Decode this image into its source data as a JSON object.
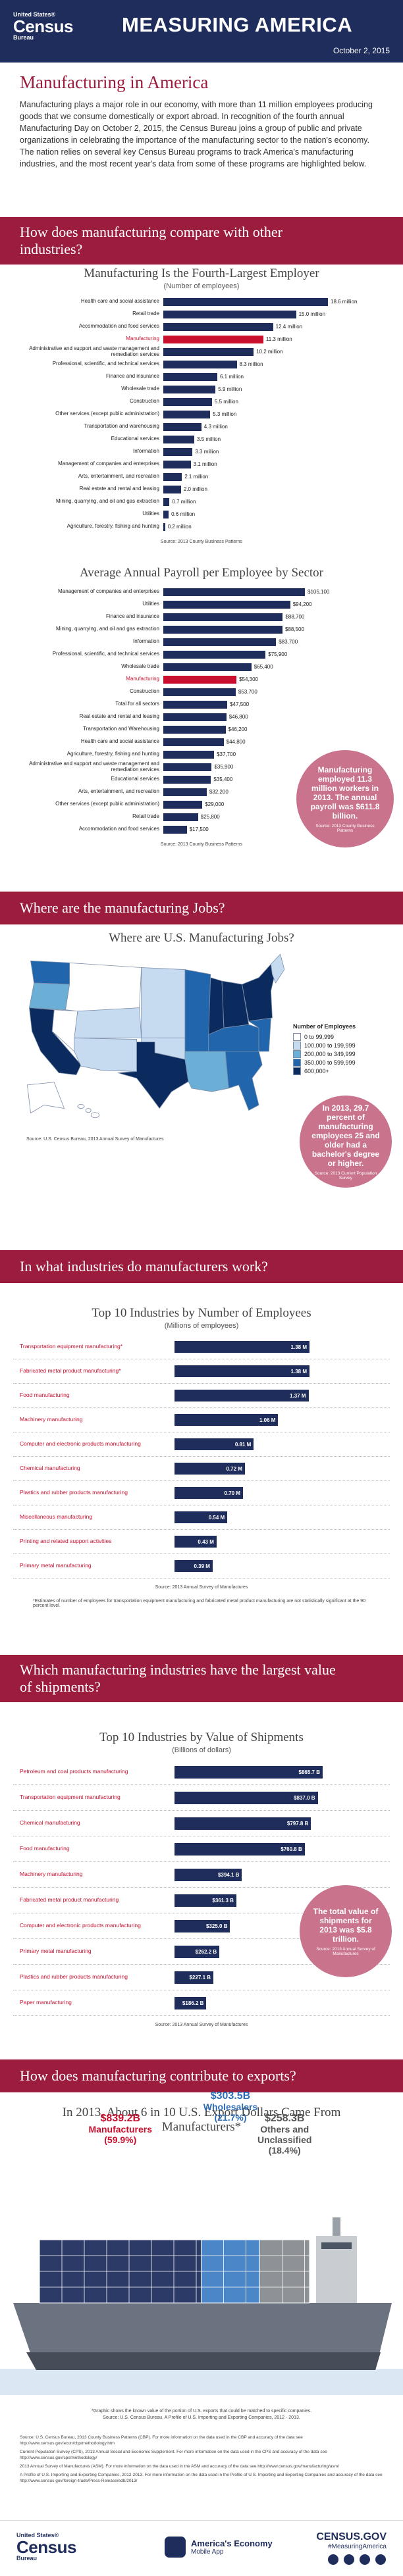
{
  "header": {
    "logo_top": "United States®",
    "logo_main": "Census",
    "logo_bottom": "Bureau",
    "title": "MEASURING AMERICA",
    "date": "October 2, 2015"
  },
  "intro": {
    "title": "Manufacturing in America",
    "text": "Manufacturing plays a major role in our economy, with more than 11 million employees producing goods that we consume domestically or export abroad. In recognition of the fourth annual Manufacturing Day on October 2, 2015, the Census Bureau joins a group of public and private organizations in celebrating the importance of the manufacturing sector to the nation's economy. The nation relies on several key Census Bureau programs to track America's manufacturing industries, and the most recent year's data from some of these programs are highlighted below."
  },
  "sections": [
    "How does manufacturing compare with other industries?",
    "Where are the manufacturing Jobs?",
    "In what industries do manufacturers work?",
    "Which manufacturing industries have the largest value of shipments?",
    "How does manufacturing contribute to exports?"
  ],
  "chart_data": [
    {
      "type": "bar",
      "orientation": "horizontal",
      "title": "Manufacturing Is the Fourth-Largest Employer",
      "subtitle": "(Number of employees)",
      "categories": [
        "Health care and social assistance",
        "Retail trade",
        "Accommodation and food services",
        "Manufacturing",
        "Administrative and support and waste management and remediation services",
        "Professional, scientific, and technical services",
        "Finance and insurance",
        "Wholesale trade",
        "Construction",
        "Other services (except public administration)",
        "Transportation and warehousing",
        "Educational services",
        "Information",
        "Management of companies and enterprises",
        "Arts, entertainment, and recreation",
        "Real estate and rental and leasing",
        "Mining, quarrying, and oil and gas extraction",
        "Utilities",
        "Agriculture, forestry, fishing and hunting"
      ],
      "values": [
        18.6,
        15.0,
        12.4,
        11.3,
        10.2,
        8.3,
        6.1,
        5.9,
        5.5,
        5.3,
        4.3,
        3.5,
        3.3,
        3.1,
        2.1,
        2.0,
        0.7,
        0.6,
        0.2
      ],
      "value_labels": [
        "18.6 million",
        "15.0 million",
        "12.4 million",
        "11.3 million",
        "10.2 million",
        "8.3 million",
        "6.1 million",
        "5.9 million",
        "5.5 million",
        "5.3 million",
        "4.3 million",
        "3.5 million",
        "3.3 million",
        "3.1 million",
        "2.1 million",
        "2.0 million",
        "0.7 million",
        "0.6 million",
        "0.2 million"
      ],
      "color": "#1f2d5c",
      "colors": [
        "#1f2d5c",
        "#1f2d5c",
        "#1f2d5c",
        "#c8102e",
        "#1f2d5c",
        "#1f2d5c",
        "#1f2d5c",
        "#1f2d5c",
        "#1f2d5c",
        "#1f2d5c",
        "#1f2d5c",
        "#1f2d5c",
        "#1f2d5c",
        "#1f2d5c",
        "#1f2d5c",
        "#1f2d5c",
        "#1f2d5c",
        "#1f2d5c",
        "#1f2d5c"
      ],
      "value_label_position": "outside",
      "source": "Source: 2013 County Business Patterns"
    },
    {
      "type": "bar",
      "orientation": "horizontal",
      "title": "Average Annual Payroll per Employee by Sector",
      "categories": [
        "Management of companies and enterprises",
        "Utilities",
        "Finance and insurance",
        "Mining, quarrying, and oil and gas extraction",
        "Information",
        "Professional, scientific, and technical services",
        "Wholesale trade",
        "Manufacturing",
        "Construction",
        "Total for all sectors",
        "Real estate and rental and leasing",
        "Transportation and Warehousing",
        "Health care and social assistance",
        "Agriculture, forestry, fishing and hunting",
        "Administrative and support and waste management and remediation services",
        "Educational services",
        "Arts, entertainment, and recreation",
        "Other services (except public administration)",
        "Retail trade",
        "Accommodation and food services"
      ],
      "values": [
        105100,
        94200,
        88700,
        88500,
        83700,
        75900,
        65400,
        54300,
        53700,
        47500,
        46800,
        46200,
        44800,
        37700,
        35900,
        35400,
        32200,
        29000,
        25800,
        17500
      ],
      "value_labels": [
        "$105,100",
        "$94,200",
        "$88,700",
        "$88,500",
        "$83,700",
        "$75,900",
        "$65,400",
        "$54,300",
        "$53,700",
        "$47,500",
        "$46,800",
        "$46,200",
        "$44,800",
        "$37,700",
        "$35,900",
        "$35,400",
        "$32,200",
        "$29,000",
        "$25,800",
        "$17,500"
      ],
      "color": "#1f2d5c",
      "colors": [
        "#1f2d5c",
        "#1f2d5c",
        "#1f2d5c",
        "#1f2d5c",
        "#1f2d5c",
        "#1f2d5c",
        "#1f2d5c",
        "#c8102e",
        "#1f2d5c",
        "#1f2d5c",
        "#1f2d5c",
        "#1f2d5c",
        "#1f2d5c",
        "#1f2d5c",
        "#1f2d5c",
        "#1f2d5c",
        "#1f2d5c",
        "#1f2d5c",
        "#1f2d5c",
        "#1f2d5c"
      ],
      "value_label_position": "outside",
      "source": "Source: 2013 County Business Patterns"
    },
    {
      "type": "bar",
      "orientation": "horizontal",
      "title": "Top 10 Industries by Number of Employees",
      "subtitle": "(Millions of employees)",
      "categories": [
        "Transportation equipment manufacturing*",
        "Fabricated metal product manufacturing*",
        "Food manufacturing",
        "Machinery manufacturing",
        "Computer and electronic products manufacturing",
        "Chemical manufacturing",
        "Plastics and rubber products manufacturing",
        "Miscellaneous manufacturing",
        "Printing and related support activities",
        "Primary metal manufacturing"
      ],
      "values": [
        1.38,
        1.38,
        1.37,
        1.06,
        0.81,
        0.72,
        0.7,
        0.54,
        0.43,
        0.39
      ],
      "value_labels": [
        "1.38 M",
        "1.38 M",
        "1.37 M",
        "1.06 M",
        "0.81 M",
        "0.72 M",
        "0.70 M",
        "0.54 M",
        "0.43 M",
        "0.39 M"
      ],
      "color": "#1f2d5c",
      "label_color": "#c8102e",
      "value_label_position": "inside",
      "source": "Source: 2013 Annual Survey of Manufactures",
      "footnote": "*Estimates of number of employees for transportation equipment manufacturing and fabricated metal product manufacturing are not statistically significant at the 90 percent level."
    },
    {
      "type": "bar",
      "orientation": "horizontal",
      "title": "Top 10 Industries by Value of Shipments",
      "subtitle": "(Billions of dollars)",
      "categories": [
        "Petroleum and coal products manufacturing",
        "Transportation equipment manufacturing",
        "Chemical manufacturing",
        "Food manufacturing",
        "Machinery manufacturing",
        "Fabricated metal product manufacturing",
        "Computer and electronic products manufacturing",
        "Primary metal manufacturing",
        "Plastics and rubber products manufacturing",
        "Paper manufacturing"
      ],
      "values": [
        865.7,
        837.0,
        797.8,
        760.8,
        394.1,
        361.3,
        325.0,
        262.2,
        227.1,
        186.2
      ],
      "value_labels": [
        "$865.7 B",
        "$837.0 B",
        "$797.8 B",
        "$760.8 B",
        "$394.1 B",
        "$361.3 B",
        "$325.0 B",
        "$262.2 B",
        "$227.1 B",
        "$186.2 B"
      ],
      "color": "#1f2d5c",
      "label_color": "#c8102e",
      "value_label_position": "inside",
      "source": "Source: 2013 Annual Survey of Manufactures"
    },
    {
      "type": "container-ship",
      "title": "In 2013, About 6 in 10 U.S. Export Dollars Came From Manufacturers*",
      "categories": [
        "Manufacturers",
        "Wholesalers",
        "Others and Unclassified"
      ],
      "values": [
        839.2,
        303.5,
        258.3
      ],
      "value_labels": [
        "$839.2B",
        "$303.5B",
        "$258.3B"
      ],
      "shares": [
        59.9,
        21.7,
        18.4
      ],
      "share_labels": [
        "(59.9%)",
        "(21.7%)",
        "(18.4%)"
      ],
      "colors": [
        "#2b3a67",
        "#4a86c8",
        "#8e9196"
      ],
      "label_colors": [
        "#c8102e",
        "#2e6db4",
        "#555555"
      ],
      "footnote": "*Graphic shows the known value of the portion of U.S. exports that could be matched to specific companies.",
      "source": "Source: U.S. Census Bureau, A Profile of U.S. Importing and Exporting Companies, 2012 - 2013."
    }
  ],
  "map": {
    "title": "Where are U.S. Manufacturing Jobs?",
    "legend_title": "Number of Employees",
    "legend": [
      {
        "label": "0 to 99,999",
        "color": "#ffffff"
      },
      {
        "label": "100,000 to 199,999",
        "color": "#c6dbef"
      },
      {
        "label": "200,000 to 349,999",
        "color": "#6baed6"
      },
      {
        "label": "350,000 to 599,999",
        "color": "#2166ac"
      },
      {
        "label": "600,000+",
        "color": "#0b2a5e"
      }
    ],
    "source": "Source: U.S. Census Bureau, 2013 Annual Survey of Manufactures"
  },
  "callouts": [
    {
      "text": "Manufacturing employed 11.3 million workers in 2013. The annual payroll was $611.8 billion.",
      "source": "Source: 2013 County Business Patterns"
    },
    {
      "text": "In 2013, 29.7 percent of manufacturing employees 25 and older had a bachelor's degree or higher.",
      "source": "Source: 2013 Current Population Survey"
    },
    {
      "text": "The total value of shipments for 2013 was $5.8 trillion.",
      "source": "Source: 2013 Annual Survey of Manufactures"
    }
  ],
  "sources": [
    "Source: U.S. Census Bureau, 2013 County Business Patterns (CBP). For more information on the data used in the CBP and accuracy of the data see http://www.census.gov/econ/cbp/methodology.htm",
    "Current Population Survey (CPS), 2013 Annual Social and Economic Supplement. For more information on the data used in the CPS and accuracy of the data see http://www.census.gov/cps/methodology/",
    "2013 Annual Survey of Manufactures (ASM). For more information on the data used in the ASM and accuracy of the data see http://www.census.gov/manufacturing/asm/",
    "A Profile of U.S. Importing and Exporting Companies, 2012-2013. For more information on the data used in the Profile of U.S. Importing and Exporting Companies and accuracy of the data see http://www.census.gov/foreign-trade/Press-Release/edb/2013/"
  ],
  "footer": {
    "logo_top": "United States®",
    "logo_main": "Census",
    "logo_bottom": "Bureau",
    "app_line1": "America's Economy",
    "app_line2": "Mobile App",
    "site": "CENSUS.GOV",
    "hashtag": "#MeasuringAmerica"
  }
}
